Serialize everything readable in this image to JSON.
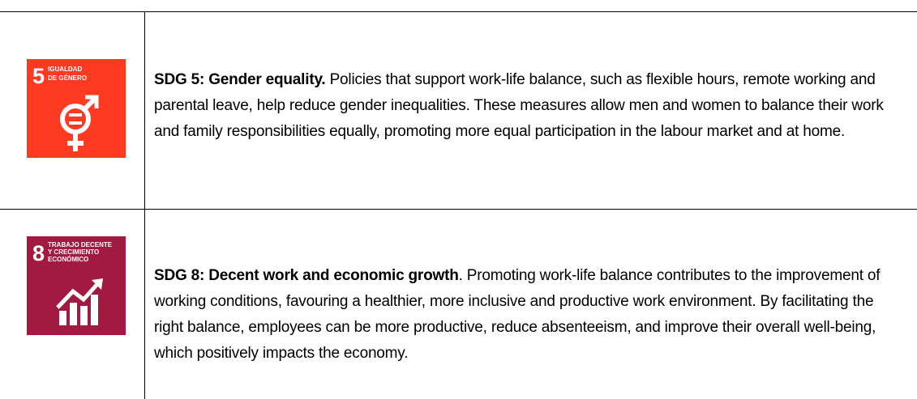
{
  "rows": [
    {
      "icon": {
        "number": "5",
        "label_lines": [
          "IGUALDAD",
          "DE GÉNERO"
        ]
      },
      "heading": "SDG 5: Gender equality.",
      "body": " Policies that support work-life balance, such as flexible hours, remote working and parental leave, help reduce gender inequalities. These measures allow men and women to balance their work and family responsibilities equally, promoting more equal participation in the labour market and at home."
    },
    {
      "icon": {
        "number": "8",
        "label_lines": [
          "TRABAJO DECENTE",
          "Y CRECIMIENTO",
          "ECONÓMICO"
        ]
      },
      "heading": "SDG 8: Decent work and economic growth",
      "body": ". Promoting work-life balance contributes to the improvement of working conditions, favouring a healthier, more inclusive and productive work environment. By facilitating the right balance, employees can be more productive, reduce absenteeism, and improve their overall well-being, which positively impacts the economy."
    }
  ]
}
